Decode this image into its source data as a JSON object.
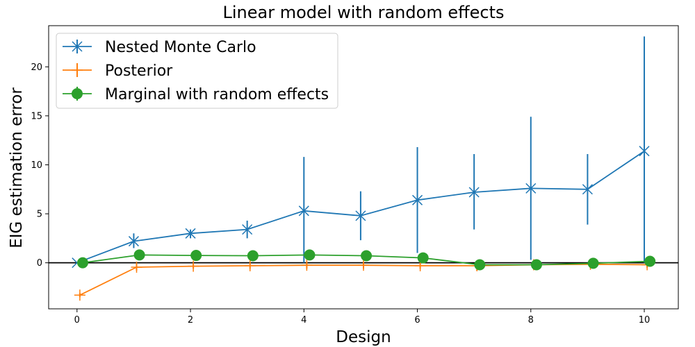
{
  "chart_data": {
    "type": "line",
    "title": "Linear model with random effects",
    "xlabel": "Design",
    "ylabel": "EIG estimation error",
    "xlim": [
      -0.5,
      10.6
    ],
    "ylim": [
      -4.7,
      24.2
    ],
    "xticks": [
      0,
      2,
      4,
      6,
      8,
      10
    ],
    "yticks": [
      0,
      5,
      10,
      15,
      20
    ],
    "grid": false,
    "legend_position": "top-left",
    "reference_line": {
      "y": 0,
      "color": "#000000"
    },
    "series": [
      {
        "name": "Nested Monte Carlo",
        "color": "#1f77b4",
        "marker": "x",
        "x": [
          0,
          1,
          2,
          3,
          4,
          5,
          6,
          7,
          8,
          9,
          10
        ],
        "y": [
          0.0,
          2.2,
          3.0,
          3.4,
          5.3,
          4.8,
          6.4,
          7.2,
          7.6,
          7.5,
          11.4
        ],
        "err_low": [
          0.0,
          1.5,
          2.5,
          2.5,
          0.0,
          2.3,
          1.0,
          3.4,
          0.3,
          3.9,
          0.0
        ],
        "err_high": [
          0.0,
          3.0,
          3.4,
          4.3,
          10.8,
          7.3,
          11.8,
          11.1,
          14.9,
          11.1,
          23.1
        ]
      },
      {
        "name": "Posterior",
        "color": "#ff7f0e",
        "marker": "+",
        "x": [
          0.05,
          1.05,
          2.05,
          3.05,
          4.05,
          5.05,
          6.05,
          7.05,
          8.05,
          9.05,
          10.05
        ],
        "y": [
          -3.3,
          -0.45,
          -0.35,
          -0.3,
          -0.25,
          -0.25,
          -0.3,
          -0.3,
          -0.2,
          -0.15,
          -0.2
        ],
        "err_low": [
          -3.5,
          -0.8,
          -0.6,
          -0.6,
          -0.6,
          -0.6,
          -0.6,
          -0.8,
          -0.5,
          -0.5,
          -0.5
        ],
        "err_high": [
          -3.1,
          -0.1,
          -0.1,
          0.0,
          0.1,
          0.1,
          0.0,
          0.2,
          0.1,
          0.2,
          0.1
        ]
      },
      {
        "name": "Marginal with random effects",
        "color": "#2ca02c",
        "marker": "o",
        "x": [
          0.1,
          1.1,
          2.1,
          3.1,
          4.1,
          5.1,
          6.1,
          7.1,
          8.1,
          9.1,
          10.1
        ],
        "y": [
          0.0,
          0.8,
          0.75,
          0.72,
          0.8,
          0.72,
          0.5,
          -0.2,
          -0.2,
          -0.05,
          0.15
        ],
        "err_low": [
          0.0,
          0.7,
          0.65,
          0.6,
          0.6,
          0.6,
          0.4,
          -0.3,
          -0.3,
          -0.2,
          0.0
        ],
        "err_high": [
          0.0,
          0.9,
          0.85,
          0.85,
          1.0,
          0.85,
          0.6,
          -0.1,
          -0.1,
          0.1,
          0.3
        ]
      }
    ]
  }
}
